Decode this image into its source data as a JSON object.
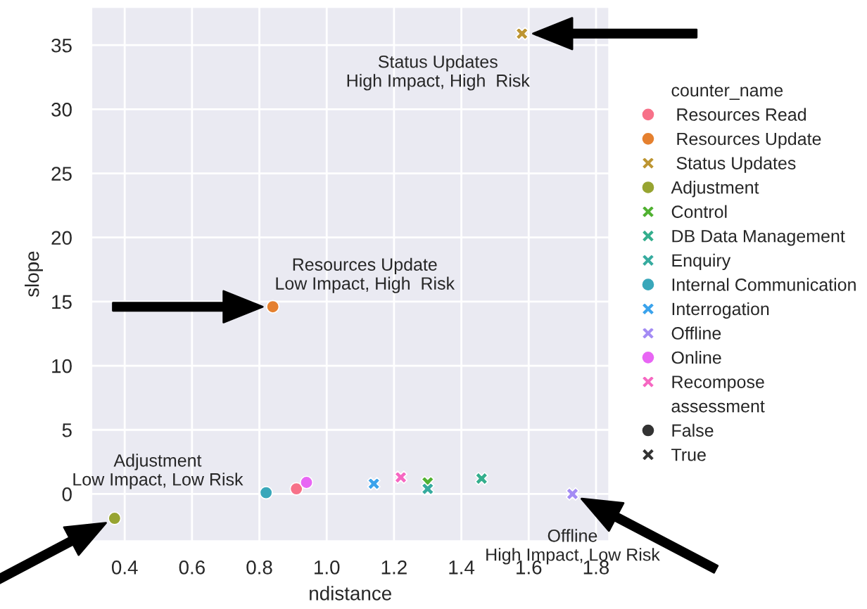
{
  "chart_data": {
    "type": "scatter",
    "xlabel": "ndistance",
    "ylabel": "slope",
    "xlim": [
      0.3,
      1.84
    ],
    "xticks": [
      {
        "value": 0.4,
        "label": "0.4"
      },
      {
        "value": 0.6,
        "label": "0.6"
      },
      {
        "value": 0.8,
        "label": "0.8"
      },
      {
        "value": 1.0,
        "label": "1.0"
      },
      {
        "value": 1.2,
        "label": "1.2"
      },
      {
        "value": 1.4,
        "label": "1.4"
      },
      {
        "value": 1.6,
        "label": "1.6"
      },
      {
        "value": 1.8,
        "label": "1.8"
      }
    ],
    "ylim": [
      -3.7,
      38
    ],
    "yticks": [
      0,
      5,
      10,
      15,
      20,
      25,
      30,
      35
    ],
    "grid": true,
    "legend": "right",
    "legend_title": [
      "counter_name",
      "assessment"
    ],
    "series": [
      {
        "name": " Resources Read",
        "color": "#f77189",
        "x": [
          0.91
        ],
        "values": [
          0.4
        ],
        "marker": "circle"
      },
      {
        "name": " Resources Update",
        "color": "#e5802f",
        "x": [
          0.84
        ],
        "values": [
          14.6
        ],
        "marker": "circle"
      },
      {
        "name": " Status Updates",
        "color": "#bd9532",
        "x": [
          1.58
        ],
        "values": [
          35.9
        ],
        "marker": "cross"
      },
      {
        "name": "Adjustment",
        "color": "#97a431",
        "x": [
          0.37
        ],
        "values": [
          -1.9
        ],
        "marker": "circle"
      },
      {
        "name": "Control",
        "color": "#50b131",
        "x": [
          1.3
        ],
        "values": [
          0.9
        ],
        "marker": "cross"
      },
      {
        "name": "DB Data Management",
        "color": "#34ae8d",
        "x": [
          1.46
        ],
        "values": [
          1.2
        ],
        "marker": "cross"
      },
      {
        "name": "Enquiry",
        "color": "#36ab9f",
        "x": [
          1.3
        ],
        "values": [
          0.4
        ],
        "marker": "cross"
      },
      {
        "name": "Internal Communication",
        "color": "#39a7ba",
        "x": [
          0.82
        ],
        "values": [
          0.1
        ],
        "marker": "circle"
      },
      {
        "name": "Interrogation",
        "color": "#3ba3ec",
        "x": [
          1.14
        ],
        "values": [
          0.8
        ],
        "marker": "cross"
      },
      {
        "name": "Offline",
        "color": "#a48cf4",
        "x": [
          1.73
        ],
        "values": [
          0.0
        ],
        "marker": "cross"
      },
      {
        "name": "Online",
        "color": "#e866f4",
        "x": [
          0.94
        ],
        "values": [
          0.9
        ],
        "marker": "circle"
      },
      {
        "name": "Recompose",
        "color": "#f668c2",
        "x": [
          1.22
        ],
        "values": [
          1.3
        ],
        "marker": "cross"
      },
      {
        "name": "False",
        "color": "#333333",
        "marker": "circle"
      },
      {
        "name": "True",
        "color": "#333333",
        "marker": "cross"
      }
    ],
    "annotations": [
      {
        "text": "Status Updates\nHigh Impact, High  Risk",
        "x": 1.58,
        "y": 35.9
      },
      {
        "text": "Resources Update\nLow Impact, High  Risk",
        "x": 0.84,
        "y": 14.6
      },
      {
        "text": "Adjustment\nLow Impact, Low Risk",
        "x": 0.37,
        "y": -1.9
      },
      {
        "text": "Offline\nHigh Impact, Low Risk",
        "x": 1.73,
        "y": 0.0
      }
    ]
  }
}
